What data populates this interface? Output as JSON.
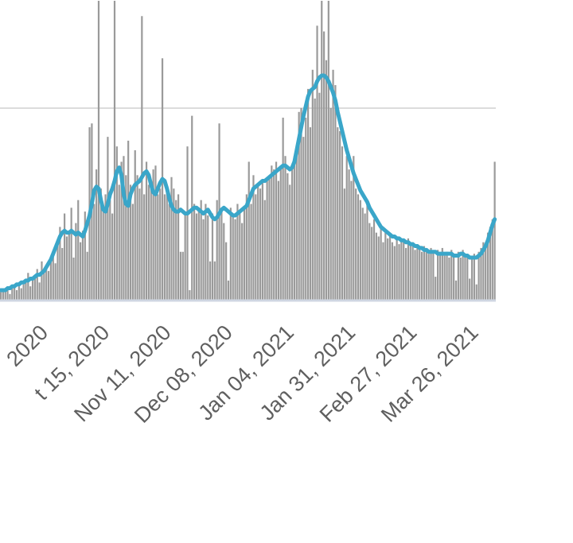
{
  "chart_data": {
    "type": "combo",
    "categories": [
      null,
      null,
      null,
      null,
      null,
      null,
      null,
      null,
      null,
      null,
      null,
      null,
      null,
      null,
      null,
      null,
      null,
      null,
      null,
      null,
      null,
      null,
      "2020",
      null,
      null,
      null,
      null,
      null,
      null,
      null,
      null,
      null,
      null,
      null,
      null,
      null,
      null,
      null,
      null,
      null,
      null,
      null,
      null,
      null,
      null,
      null,
      null,
      null,
      null,
      "t 15, 2020",
      null,
      null,
      null,
      null,
      null,
      null,
      null,
      null,
      null,
      null,
      null,
      null,
      null,
      null,
      null,
      null,
      null,
      null,
      null,
      null,
      null,
      null,
      null,
      null,
      null,
      null,
      "Nov 11, 2020",
      null,
      null,
      null,
      null,
      null,
      null,
      null,
      null,
      null,
      null,
      null,
      null,
      null,
      null,
      null,
      null,
      null,
      null,
      null,
      null,
      null,
      null,
      null,
      null,
      null,
      null,
      "Dec 08, 2020",
      null,
      null,
      null,
      null,
      null,
      null,
      null,
      null,
      null,
      null,
      null,
      null,
      null,
      null,
      null,
      null,
      null,
      null,
      null,
      null,
      null,
      null,
      null,
      null,
      null,
      null,
      "Jan 04, 2021",
      null,
      null,
      null,
      null,
      null,
      null,
      null,
      null,
      null,
      null,
      null,
      null,
      null,
      null,
      null,
      null,
      null,
      null,
      null,
      null,
      null,
      null,
      null,
      null,
      null,
      null,
      "Jan 31, 2021",
      null,
      null,
      null,
      null,
      null,
      null,
      null,
      null,
      null,
      null,
      null,
      null,
      null,
      null,
      null,
      null,
      null,
      null,
      null,
      null,
      null,
      null,
      null,
      null,
      null,
      null,
      "Feb 27, 2021",
      null,
      null,
      null,
      null,
      null,
      null,
      null,
      null,
      null,
      null,
      null,
      null,
      null,
      null,
      null,
      null,
      null,
      null,
      null,
      null,
      null,
      null,
      null,
      null,
      null,
      null,
      "Mar 26, 2021",
      null,
      null,
      null,
      null,
      null,
      null
    ],
    "series": [
      {
        "type": "bar",
        "color": "#9a9a9a",
        "values": [
          4,
          6,
          5,
          7,
          3,
          6,
          8,
          5,
          7,
          6,
          8,
          10,
          14,
          7,
          12,
          11,
          16,
          9,
          20,
          14,
          18,
          15,
          22,
          25,
          19,
          30,
          38,
          27,
          45,
          33,
          35,
          48,
          22,
          40,
          52,
          30,
          36,
          46,
          25,
          90,
          92,
          50,
          68,
          156,
          58,
          48,
          55,
          85,
          52,
          45,
          156,
          80,
          60,
          72,
          75,
          65,
          83,
          60,
          50,
          78,
          65,
          58,
          148,
          55,
          72,
          60,
          62,
          68,
          70,
          55,
          58,
          126,
          55,
          60,
          50,
          64,
          58,
          52,
          55,
          25,
          25,
          45,
          80,
          5,
          96,
          50,
          45,
          48,
          52,
          42,
          50,
          44,
          20,
          45,
          20,
          52,
          92,
          48,
          40,
          30,
          10,
          48,
          45,
          42,
          50,
          46,
          40,
          48,
          55,
          72,
          50,
          65,
          55,
          60,
          58,
          62,
          52,
          64,
          65,
          70,
          68,
          72,
          62,
          70,
          95,
          75,
          66,
          60,
          70,
          75,
          80,
          98,
          100,
          85,
          95,
          110,
          90,
          120,
          105,
          143,
          108,
          156,
          140,
          125,
          156,
          100,
          120,
          112,
          90,
          88,
          80,
          58,
          75,
          68,
          62,
          75,
          58,
          55,
          52,
          48,
          45,
          50,
          40,
          38,
          42,
          35,
          33,
          38,
          30,
          36,
          32,
          34,
          30,
          28,
          33,
          29,
          31,
          30,
          27,
          32,
          28,
          30,
          26,
          29,
          27,
          25,
          28,
          26,
          24,
          27,
          25,
          12,
          26,
          24,
          27,
          23,
          25,
          22,
          26,
          24,
          10,
          25,
          22,
          26,
          24,
          23,
          11,
          22,
          24,
          8,
          25,
          27,
          30,
          28,
          35,
          38,
          42,
          72
        ]
      },
      {
        "type": "line",
        "color": "#3aa6c9",
        "values": [
          5,
          5,
          5,
          6,
          6,
          7,
          7,
          8,
          8,
          9,
          9,
          10,
          10,
          11,
          11,
          12,
          13,
          13,
          14,
          15,
          17,
          19,
          21,
          24,
          27,
          30,
          33,
          35,
          36,
          35,
          35,
          36,
          35,
          34,
          35,
          34,
          33,
          36,
          40,
          44,
          50,
          57,
          59,
          58,
          52,
          47,
          46,
          50,
          55,
          58,
          62,
          67,
          69,
          65,
          55,
          50,
          49,
          55,
          58,
          60,
          61,
          62,
          64,
          66,
          67,
          65,
          60,
          56,
          55,
          58,
          61,
          63,
          62,
          58,
          53,
          49,
          47,
          46,
          46,
          47,
          46,
          45,
          45,
          46,
          47,
          48,
          48,
          47,
          46,
          45,
          46,
          47,
          45,
          43,
          42,
          43,
          45,
          47,
          48,
          47,
          46,
          45,
          44,
          44,
          45,
          46,
          47,
          48,
          49,
          52,
          55,
          58,
          59,
          60,
          61,
          62,
          62,
          63,
          64,
          65,
          66,
          67,
          68,
          69,
          70,
          70,
          69,
          68,
          69,
          72,
          78,
          84,
          90,
          96,
          101,
          106,
          109,
          110,
          111,
          114,
          116,
          117,
          117,
          116,
          114,
          111,
          108,
          104,
          98,
          93,
          88,
          83,
          78,
          74,
          70,
          66,
          63,
          60,
          57,
          55,
          53,
          51,
          48,
          46,
          44,
          42,
          40,
          38,
          37,
          36,
          35,
          34,
          33,
          33,
          32,
          32,
          31,
          31,
          30,
          30,
          29,
          29,
          28,
          28,
          27,
          27,
          26,
          26,
          25,
          25,
          25,
          25,
          24,
          24,
          24,
          24,
          24,
          24,
          24,
          23,
          23,
          23,
          24,
          24,
          23,
          23,
          22,
          22,
          22,
          22,
          23,
          24,
          26,
          28,
          31,
          35,
          39,
          42
        ]
      }
    ],
    "ylim": [
      0,
      156
    ],
    "yticks": [
      100
    ],
    "grid": true
  }
}
